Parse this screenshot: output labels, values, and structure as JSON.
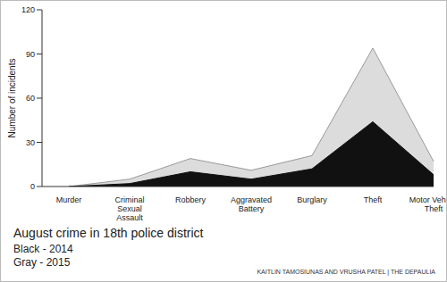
{
  "chart_data": {
    "type": "area",
    "title": "August crime in 18th police district",
    "y_label": "Number of incidents",
    "categories": [
      "Murder",
      "Criminal Sexual Assault",
      "Robbery",
      "Aggravated Battery",
      "Burglary",
      "Theft",
      "Motor Vehicle Theft"
    ],
    "series": [
      {
        "name": "Gray - 2015",
        "color": "#dcdcdc",
        "values": [
          0,
          5,
          19,
          11,
          21,
          94,
          17
        ]
      },
      {
        "name": "Black - 2014",
        "color": "#111111",
        "values": [
          0,
          2,
          10,
          5,
          12,
          44,
          8
        ]
      }
    ],
    "ylim": [
      0,
      120
    ],
    "yticks": [
      0,
      30,
      60,
      90,
      120
    ],
    "stacked": false,
    "grid": false,
    "annotations": [
      "KAITLIN TAMOSIUNAS AND VRUSHA PATEL | THE DEPAULIA"
    ]
  }
}
